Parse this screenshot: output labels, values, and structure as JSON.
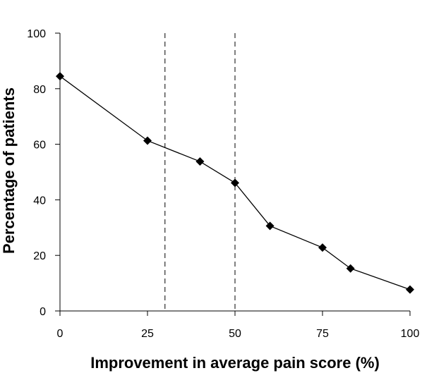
{
  "chart_data": {
    "type": "line",
    "xlabel": "Improvement in average pain score (%)",
    "ylabel": "Percentage of patients",
    "xlim": [
      0,
      100
    ],
    "ylim": [
      0,
      100
    ],
    "x_ticks": [
      0,
      25,
      50,
      75,
      100
    ],
    "y_ticks": [
      0,
      20,
      40,
      60,
      80,
      100
    ],
    "grid": false,
    "legend": "none",
    "series": [
      {
        "x": [
          0,
          25,
          40,
          50,
          60,
          75,
          83,
          100
        ],
        "y": [
          84.5,
          61.3,
          53.8,
          46.1,
          30.6,
          22.8,
          15.3,
          7.7
        ],
        "marker": "diamond",
        "color": "#000000"
      }
    ],
    "reference_lines": [
      {
        "axis": "x",
        "value": 30,
        "style": "dashed"
      },
      {
        "axis": "x",
        "value": 50,
        "style": "dashed"
      }
    ]
  }
}
